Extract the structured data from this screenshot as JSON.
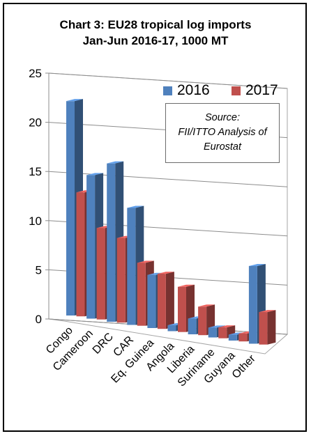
{
  "title_line1": "Chart 3: EU28 tropical log imports",
  "title_line2": "Jan-Jun 2016-17, 1000 MT",
  "source_box": {
    "line1": "Source:",
    "line2": "FII/ITTO Analysis of",
    "line3": "Eurostat"
  },
  "chart_data": {
    "type": "bar",
    "style": "3d-clustered-column",
    "categories": [
      "Congo",
      "Cameroon",
      "DRC",
      "CAR",
      "Eq. Guinea",
      "Angola",
      "Liberia",
      "Suriname",
      "Guyana",
      "Other"
    ],
    "series": [
      {
        "name": "2016",
        "color": "#4f81bd",
        "values": [
          21.8,
          14.6,
          16.1,
          11.9,
          5.4,
          0.6,
          1.6,
          1.0,
          0.6,
          7.9
        ]
      },
      {
        "name": "2017",
        "color": "#c0504d",
        "values": [
          12.6,
          9.3,
          8.6,
          6.4,
          5.6,
          4.6,
          2.9,
          1.1,
          0.8,
          3.3
        ]
      }
    ],
    "ylim": [
      0,
      25
    ],
    "yticks": [
      0,
      5,
      10,
      15,
      20,
      25
    ],
    "grid": true,
    "legend_position": "top-right",
    "xlabel": "",
    "ylabel": ""
  }
}
